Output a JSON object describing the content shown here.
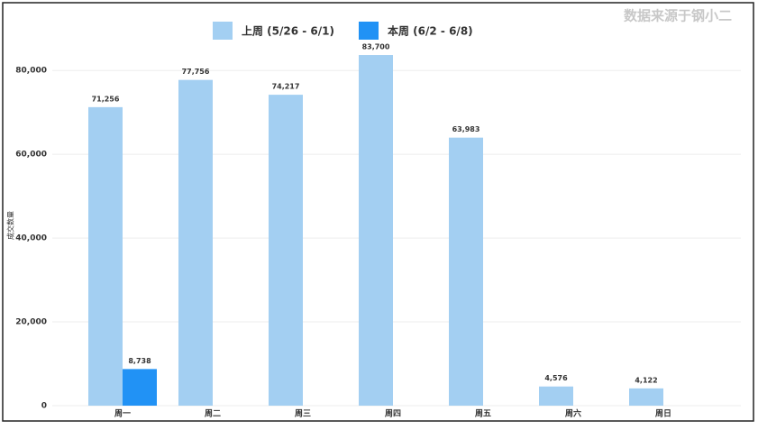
{
  "chart_data": {
    "type": "bar",
    "source": "数据来源于钢小二",
    "y_label": "成交数量",
    "categories": [
      "周一",
      "周二",
      "周三",
      "周四",
      "周五",
      "周六",
      "周日"
    ],
    "series": [
      {
        "name": "上周 (5/26 - 6/1)",
        "color": "#a3cff2",
        "values": [
          71256,
          77756,
          74217,
          83700,
          63983,
          4576,
          4122
        ],
        "value_labels": [
          "71,256",
          "77,756",
          "74,217",
          "83,700",
          "63,983",
          "4,576",
          "4,122"
        ]
      },
      {
        "name": "本周 (6/2 - 6/8)",
        "color": "#2192f5",
        "values": [
          8738,
          null,
          null,
          null,
          null,
          null,
          null
        ],
        "value_labels": [
          "8,738",
          null,
          null,
          null,
          null,
          null,
          null
        ]
      }
    ],
    "ylim": [
      0,
      85000
    ],
    "yticks": [
      {
        "value": 0,
        "label": "0"
      },
      {
        "value": 20000,
        "label": "20,000"
      },
      {
        "value": 40000,
        "label": "40,000"
      },
      {
        "value": 60000,
        "label": "60,000"
      },
      {
        "value": 80000,
        "label": "80,000"
      }
    ],
    "grid": true
  }
}
